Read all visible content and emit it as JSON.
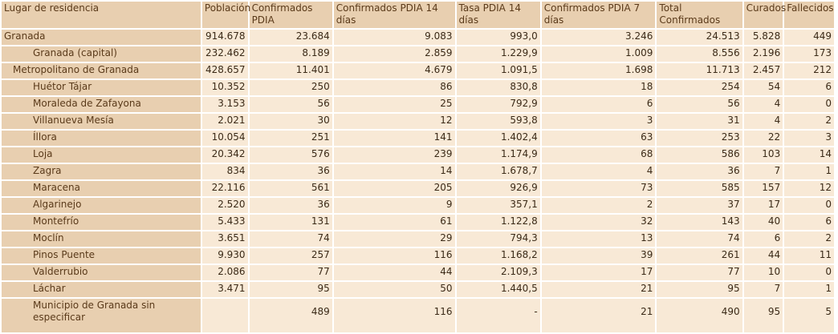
{
  "table": {
    "headers": [
      "Lugar de residencia",
      "Población",
      "Confirmados PDIA",
      "Confirmados PDIA 14 días",
      "Tasa PDIA 14 días",
      "Confirmados PDIA 7 días",
      "Total Confirmados",
      "Curados",
      "Fallecidos"
    ],
    "rows": [
      {
        "level": 0,
        "cells": [
          "Granada",
          "914.678",
          "23.684",
          "9.083",
          "993,0",
          "3.246",
          "24.513",
          "5.828",
          "449"
        ]
      },
      {
        "level": 2,
        "cells": [
          "Granada (capital)",
          "232.462",
          "8.189",
          "2.859",
          "1.229,9",
          "1.009",
          "8.556",
          "2.196",
          "173"
        ]
      },
      {
        "level": 1,
        "cells": [
          "Metropolitano de Granada",
          "428.657",
          "11.401",
          "4.679",
          "1.091,5",
          "1.698",
          "11.713",
          "2.457",
          "212"
        ]
      },
      {
        "level": 2,
        "cells": [
          "Huétor Tájar",
          "10.352",
          "250",
          "86",
          "830,8",
          "18",
          "254",
          "54",
          "6"
        ]
      },
      {
        "level": 2,
        "cells": [
          "Moraleda de Zafayona",
          "3.153",
          "56",
          "25",
          "792,9",
          "6",
          "56",
          "4",
          "0"
        ]
      },
      {
        "level": 2,
        "cells": [
          "Villanueva Mesía",
          "2.021",
          "30",
          "12",
          "593,8",
          "3",
          "31",
          "4",
          "2"
        ]
      },
      {
        "level": 2,
        "cells": [
          "Íllora",
          "10.054",
          "251",
          "141",
          "1.402,4",
          "63",
          "253",
          "22",
          "3"
        ]
      },
      {
        "level": 2,
        "cells": [
          "Loja",
          "20.342",
          "576",
          "239",
          "1.174,9",
          "68",
          "586",
          "103",
          "14"
        ]
      },
      {
        "level": 2,
        "cells": [
          "Zagra",
          "834",
          "36",
          "14",
          "1.678,7",
          "4",
          "36",
          "7",
          "1"
        ]
      },
      {
        "level": 2,
        "cells": [
          "Maracena",
          "22.116",
          "561",
          "205",
          "926,9",
          "73",
          "585",
          "157",
          "12"
        ]
      },
      {
        "level": 2,
        "cells": [
          "Algarinejo",
          "2.520",
          "36",
          "9",
          "357,1",
          "2",
          "37",
          "17",
          "0"
        ]
      },
      {
        "level": 2,
        "cells": [
          "Montefrío",
          "5.433",
          "131",
          "61",
          "1.122,8",
          "32",
          "143",
          "40",
          "6"
        ]
      },
      {
        "level": 2,
        "cells": [
          "Moclín",
          "3.651",
          "74",
          "29",
          "794,3",
          "13",
          "74",
          "6",
          "2"
        ]
      },
      {
        "level": 2,
        "cells": [
          "Pinos Puente",
          "9.930",
          "257",
          "116",
          "1.168,2",
          "39",
          "261",
          "44",
          "11"
        ]
      },
      {
        "level": 2,
        "cells": [
          "Valderrubio",
          "2.086",
          "77",
          "44",
          "2.109,3",
          "17",
          "77",
          "10",
          "0"
        ]
      },
      {
        "level": 2,
        "cells": [
          "Láchar",
          "3.471",
          "95",
          "50",
          "1.440,5",
          "21",
          "95",
          "7",
          "1"
        ]
      },
      {
        "level": 2,
        "tall": true,
        "cells": [
          "Municipio de Granada sin especificar",
          "",
          "489",
          "116",
          "-",
          "21",
          "490",
          "95",
          "5"
        ]
      }
    ]
  }
}
